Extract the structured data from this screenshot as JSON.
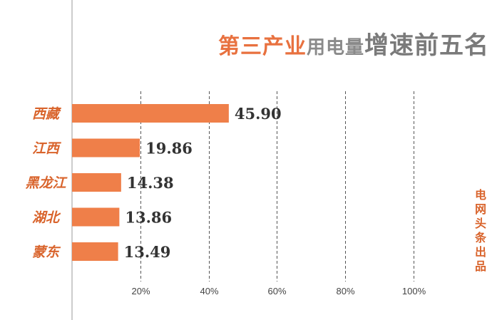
{
  "title": {
    "part1": "第三产业",
    "part2": "用电量",
    "part3": "增速前五名"
  },
  "source": "电网头条出品",
  "colors": {
    "bar": "#ef7f49",
    "label": "#d9642c",
    "value": "#333333",
    "grid": "#555555",
    "axis": "#9a9a9a"
  },
  "chart_data": {
    "type": "bar",
    "orientation": "horizontal",
    "categories": [
      "西藏",
      "江西",
      "黑龙江",
      "湖北",
      "蒙东"
    ],
    "values": [
      45.9,
      19.86,
      14.38,
      13.86,
      13.49
    ],
    "value_labels": [
      "45.90",
      "19.86",
      "14.38",
      "13.86",
      "13.49"
    ],
    "xlim": [
      0,
      100
    ],
    "xticks": [
      20,
      40,
      60,
      80,
      100
    ],
    "xtick_labels": [
      "20%",
      "40%",
      "60%",
      "80%",
      "100%"
    ],
    "grid": true,
    "grid_style": "dashed vertical"
  }
}
